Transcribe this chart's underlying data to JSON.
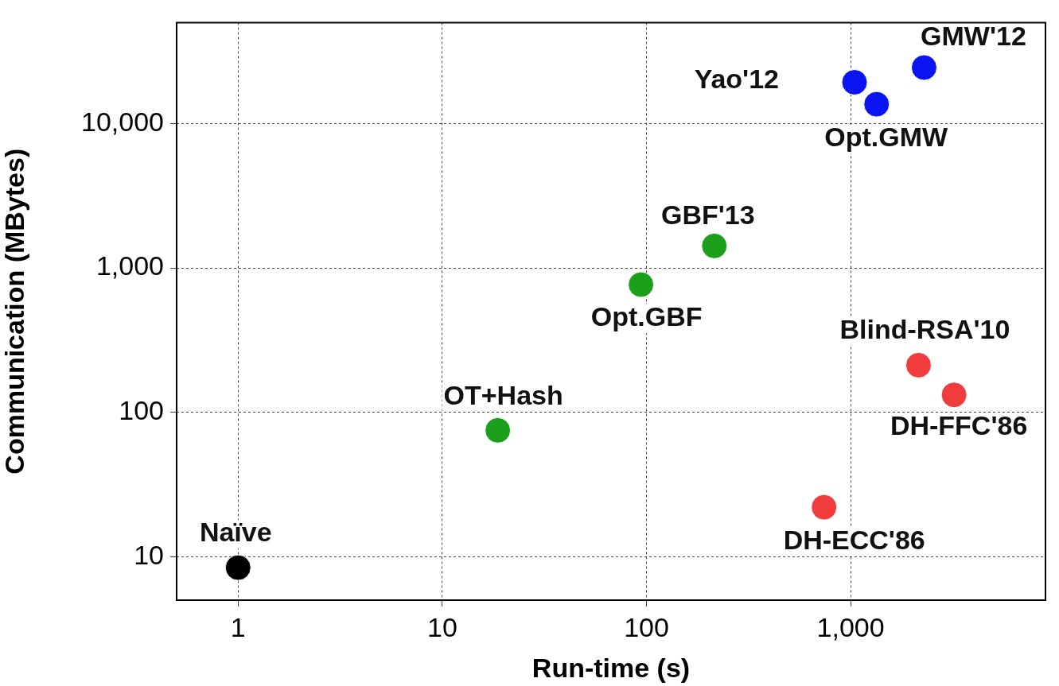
{
  "chart_data": {
    "type": "scatter",
    "xlabel": "Run-time (s)",
    "ylabel": "Communication (MBytes)",
    "log": "xy",
    "grid": true,
    "legend": false,
    "marker": "circle",
    "xlim": [
      0.5,
      9000
    ],
    "ylim": [
      5,
      50000
    ],
    "xticks": [
      1,
      10,
      100,
      {
        "value": 1000,
        "label": "1,000"
      }
    ],
    "yticks": [
      10,
      100,
      {
        "value": 1000,
        "label": "1,000"
      },
      {
        "value": 10000,
        "label": "10,000"
      }
    ],
    "series": [
      {
        "color": "#000000",
        "x": [
          1
        ],
        "values": [
          8.4
        ]
      },
      {
        "color": "#1ca01c",
        "x": [
          18.7,
          94,
          215
        ],
        "values": [
          75,
          766,
          1420
        ]
      },
      {
        "color": "#0a14f0",
        "x": [
          1045,
          1340,
          2290
        ],
        "values": [
          19300,
          13600,
          24400
        ]
      },
      {
        "color": "#f03c3c",
        "x": [
          2150,
          3210,
          741
        ],
        "values": [
          212,
          132,
          22
        ]
      }
    ],
    "annotations": [
      {
        "text": "Naïve",
        "x": 1,
        "y": 8.4
      },
      {
        "text": "OT+Hash",
        "x": 18.7,
        "y": 75
      },
      {
        "text": "Opt.GBF",
        "x": 94,
        "y": 766
      },
      {
        "text": "GBF'13",
        "x": 215,
        "y": 1420
      },
      {
        "text": "Yao'12",
        "x": 1045,
        "y": 19300
      },
      {
        "text": "Opt.GMW",
        "x": 1340,
        "y": 13600
      },
      {
        "text": "GMW'12",
        "x": 2290,
        "y": 24400
      },
      {
        "text": "Blind-RSA'10",
        "x": 2150,
        "y": 212
      },
      {
        "text": "DH-FFC'86",
        "x": 3210,
        "y": 132
      },
      {
        "text": "DH-ECC'86",
        "x": 741,
        "y": 22
      }
    ]
  }
}
